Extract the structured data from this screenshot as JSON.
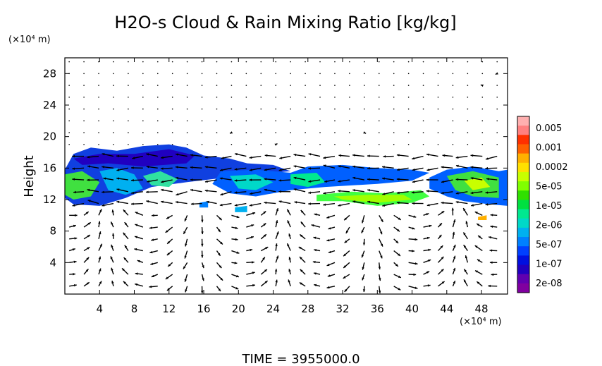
{
  "chart_data": {
    "type": "heatmap",
    "title": "H2O-s Cloud & Rain Mixing Ratio [kg/kg]",
    "ylabel": "Height",
    "xunit": "(×10⁴ m)",
    "yunit": "(×10⁴ m)",
    "time_label": "TIME  =  3955000.0",
    "xlim": [
      0,
      51
    ],
    "ylim": [
      0,
      30
    ],
    "x_ticks": [
      4,
      8,
      12,
      16,
      20,
      24,
      28,
      32,
      36,
      40,
      44,
      48
    ],
    "y_ticks": [
      4,
      8,
      12,
      16,
      20,
      24,
      28
    ],
    "colorbar": {
      "labels": [
        "0.005",
        "0.001",
        "0.0002",
        "5e-05",
        "1e-05",
        "2e-06",
        "5e-07",
        "1e-07",
        "2e-08"
      ],
      "colors": [
        "#ffb0b0",
        "#ff8080",
        "#ff3000",
        "#ff6000",
        "#ffb000",
        "#ffe000",
        "#c8ff00",
        "#80ff00",
        "#30e000",
        "#00e040",
        "#00e890",
        "#00d8c8",
        "#00b0f0",
        "#0080ff",
        "#0040ff",
        "#0010e0",
        "#2000c0",
        "#6000b0",
        "#8000a0"
      ]
    },
    "cloud_regions": [
      {
        "name": "upper cloud layer (west)",
        "x": [
          0,
          18
        ],
        "y": [
          11,
          19
        ],
        "dominant": "1e-07"
      },
      {
        "name": "mid cloud band",
        "x": [
          18,
          42
        ],
        "y": [
          12,
          16
        ],
        "dominant": "5e-07"
      },
      {
        "name": "green band",
        "x": [
          29,
          42
        ],
        "y": [
          11.5,
          13
        ],
        "dominant": "5e-05"
      },
      {
        "name": "eastern cloud",
        "x": [
          42,
          51
        ],
        "y": [
          11,
          16
        ],
        "dominant": "5e-05"
      }
    ]
  }
}
